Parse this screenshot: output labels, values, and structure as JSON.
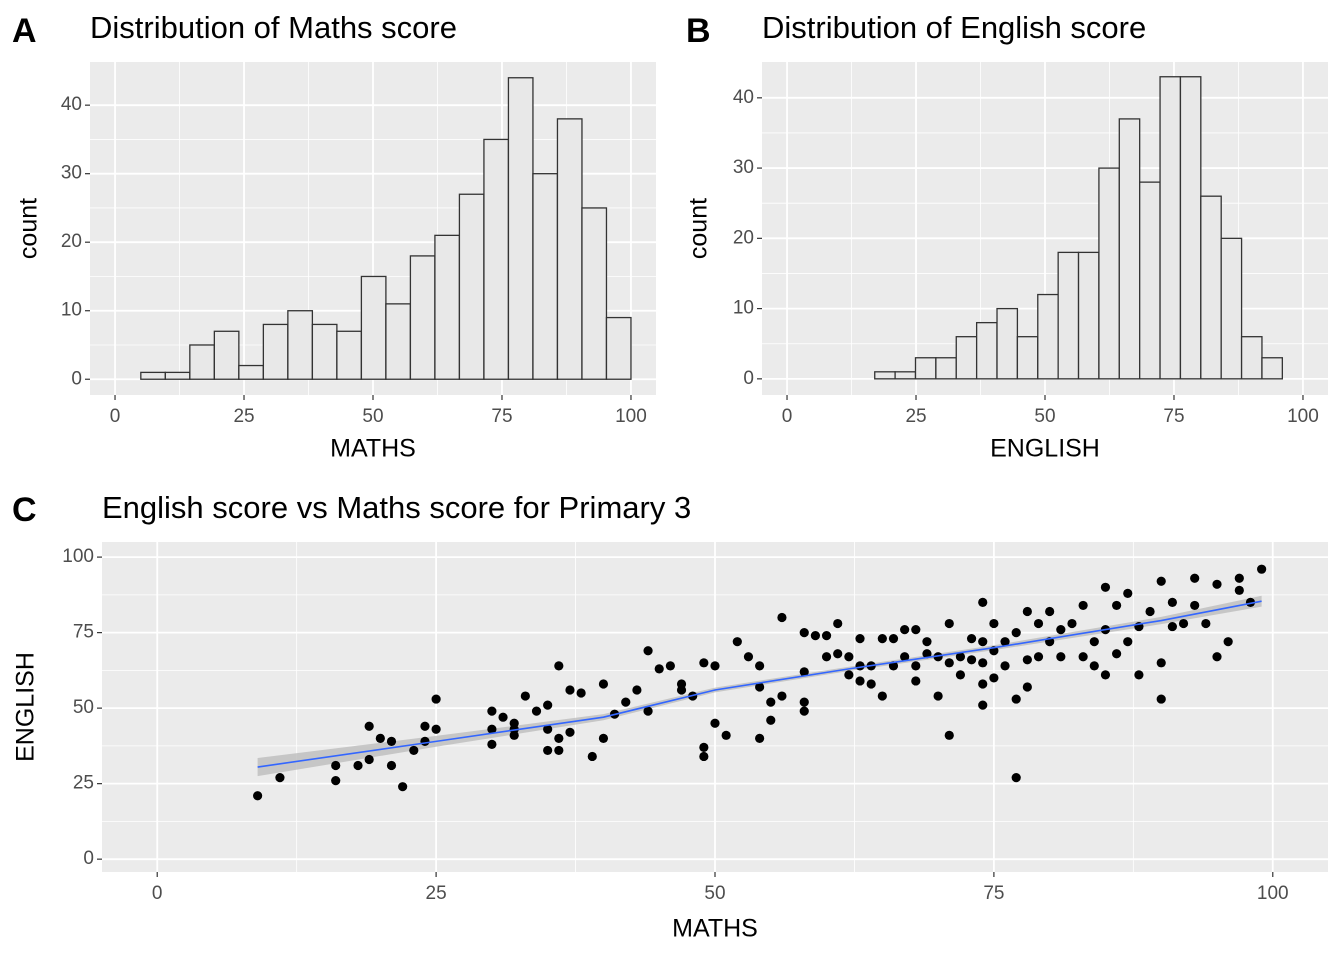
{
  "chart_data": [
    {
      "type": "histogram",
      "tag": "A",
      "title": "Distribution of Maths score",
      "xlabel": "MATHS",
      "ylabel": "count",
      "bins": [
        5,
        9.75,
        14.5,
        19.25,
        24,
        28.75,
        33.5,
        38.25,
        43,
        47.75,
        52.5,
        57.25,
        62,
        66.75,
        71.5,
        76.25,
        81,
        85.75,
        90.5,
        95.25,
        100
      ],
      "counts": [
        1,
        1,
        5,
        7,
        2,
        8,
        10,
        8,
        7,
        15,
        11,
        18,
        21,
        27,
        35,
        44,
        30,
        38,
        25,
        9
      ],
      "color": "#e8e8e8",
      "edge_color": "#333333",
      "xlim": [
        -4.85,
        104.85
      ],
      "ylim": [
        -2.3,
        46.3
      ],
      "xticks": [
        0,
        25,
        50,
        75,
        100
      ],
      "yticks": [
        0,
        10,
        20,
        30,
        40
      ],
      "grid": true
    },
    {
      "type": "histogram",
      "tag": "B",
      "title": "Distribution of English score",
      "xlabel": "ENGLISH",
      "ylabel": "count",
      "bins": [
        17,
        20.95,
        24.9,
        28.85,
        32.8,
        36.75,
        40.7,
        44.65,
        48.6,
        52.55,
        56.5,
        60.45,
        64.4,
        68.35,
        72.3,
        76.25,
        80.2,
        84.15,
        88.1,
        92.05,
        96
      ],
      "counts": [
        1,
        1,
        3,
        3,
        6,
        8,
        10,
        6,
        12,
        18,
        18,
        30,
        37,
        28,
        43,
        43,
        26,
        20,
        6,
        3
      ],
      "color": "#e8e8e8",
      "edge_color": "#333333",
      "xlim": [
        -4.85,
        104.85
      ],
      "ylim": [
        -2.3,
        45.1
      ],
      "xticks": [
        0,
        25,
        50,
        75,
        100
      ],
      "yticks": [
        0,
        10,
        20,
        30,
        40
      ],
      "grid": true
    },
    {
      "type": "scatter",
      "tag": "C",
      "title": "English score vs Maths score for Primary 3",
      "xlabel": "MATHS",
      "ylabel": "ENGLISH",
      "x": [
        9,
        11,
        16,
        16,
        18,
        19,
        19,
        20,
        21,
        21,
        22,
        23,
        24,
        24,
        25,
        25,
        30,
        30,
        30,
        31,
        32,
        32,
        32,
        33,
        34,
        35,
        35,
        35,
        36,
        36,
        36,
        37,
        37,
        38,
        39,
        40,
        40,
        41,
        42,
        43,
        44,
        44,
        45,
        46,
        47,
        47,
        48,
        49,
        49,
        49,
        50,
        50,
        51,
        52,
        53,
        54,
        54,
        54,
        55,
        55,
        56,
        56,
        58,
        58,
        58,
        58,
        59,
        60,
        60,
        61,
        61,
        62,
        62,
        63,
        63,
        63,
        64,
        64,
        65,
        65,
        66,
        66,
        67,
        67,
        68,
        68,
        68,
        69,
        69,
        70,
        70,
        71,
        71,
        71,
        72,
        72,
        73,
        73,
        74,
        74,
        74,
        74,
        74,
        75,
        75,
        75,
        76,
        76,
        77,
        77,
        77,
        78,
        78,
        78,
        79,
        79,
        80,
        80,
        81,
        81,
        82,
        83,
        83,
        84,
        84,
        85,
        85,
        85,
        86,
        86,
        87,
        87,
        88,
        88,
        89,
        90,
        90,
        90,
        91,
        91,
        92,
        93,
        93,
        94,
        95,
        95,
        96,
        97,
        97,
        98,
        99
      ],
      "y": [
        21,
        27,
        31,
        26,
        31,
        44,
        33,
        40,
        39,
        31,
        24,
        36,
        44,
        39,
        53,
        43,
        49,
        43,
        38,
        47,
        45,
        43,
        41,
        54,
        49,
        51,
        43,
        36,
        64,
        36,
        40,
        56,
        42,
        55,
        34,
        58,
        40,
        48,
        52,
        56,
        69,
        49,
        63,
        64,
        58,
        56,
        54,
        65,
        37,
        34,
        64,
        45,
        41,
        72,
        67,
        57,
        40,
        64,
        46,
        52,
        54,
        80,
        75,
        49,
        52,
        62,
        74,
        74,
        67,
        78,
        68,
        67,
        61,
        73,
        64,
        59,
        64,
        58,
        73,
        54,
        73,
        64,
        67,
        76,
        76,
        64,
        59,
        68,
        72,
        67,
        54,
        41,
        78,
        65,
        67,
        61,
        73,
        66,
        85,
        51,
        58,
        65,
        72,
        78,
        69,
        60,
        72,
        64,
        27,
        53,
        75,
        82,
        66,
        57,
        78,
        67,
        82,
        72,
        76,
        67,
        78,
        84,
        67,
        72,
        64,
        90,
        76,
        61,
        68,
        84,
        88,
        72,
        61,
        77,
        82,
        92,
        53,
        65,
        85,
        77,
        78,
        93,
        84,
        78,
        91,
        67,
        72,
        93,
        89,
        85,
        96
      ],
      "color": "#000000",
      "trend": {
        "x": [
          9,
          25,
          40,
          50,
          62,
          75,
          90,
          99
        ],
        "y": [
          30.5,
          39,
          47,
          56,
          63,
          70,
          79,
          85.4
        ],
        "ci_lower": [
          27.5,
          37.2,
          46,
          55.2,
          62.3,
          69.2,
          77.8,
          83.6
        ],
        "ci_upper": [
          33.5,
          40.8,
          48,
          56.8,
          63.7,
          70.8,
          80.2,
          87.2
        ],
        "color": "#3366ff",
        "band_color": "#bdbdbd"
      },
      "xlim": [
        -4.95,
        104.95
      ],
      "ylim": [
        -4.25,
        105
      ],
      "xticks": [
        0,
        25,
        50,
        75,
        100
      ],
      "yticks": [
        0,
        25,
        50,
        75,
        100
      ],
      "grid": true
    }
  ]
}
